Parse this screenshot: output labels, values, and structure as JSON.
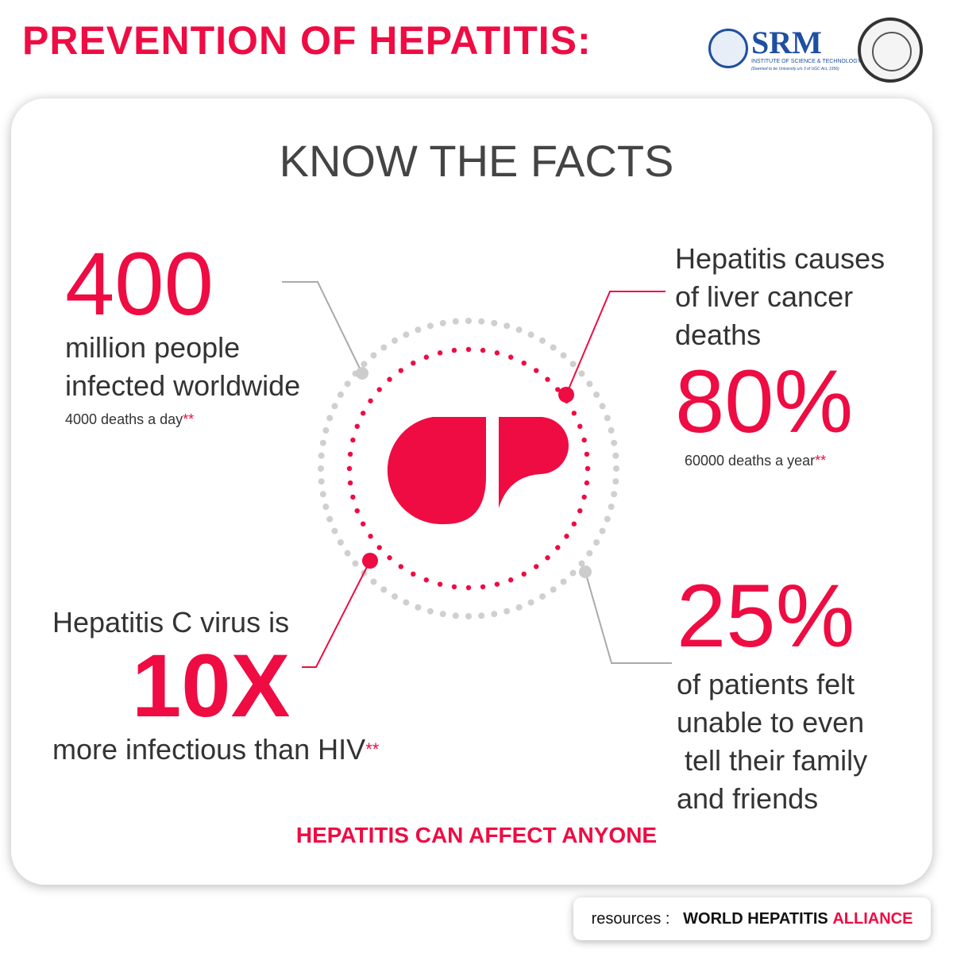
{
  "header": {
    "title": "PREVENTION OF HEPATITIS:",
    "logo_name": "SRM",
    "logo_subtitle": "INSTITUTE OF SCIENCE & TECHNOLOGY",
    "logo_note": "(Deemed to be University u/s 3 of UGC Act, 1956)"
  },
  "card": {
    "title": "KNOW THE FACTS",
    "facts": [
      {
        "figure": "400",
        "lines": [
          "million people",
          "infected worldwide"
        ],
        "note": "4000 deaths a day",
        "marker": "**"
      },
      {
        "lines": [
          "Hepatitis causes",
          "of liver cancer",
          "deaths"
        ],
        "figure": "80%",
        "note": "60000 deaths a year",
        "marker": "**"
      },
      {
        "lines": [
          "Hepatitis C virus is"
        ],
        "figure": "10X",
        "after": "more infectious than HIV",
        "marker": "**"
      },
      {
        "figure": "25%",
        "lines": [
          "of patients felt",
          "unable to even",
          " tell their family",
          "and friends"
        ]
      }
    ],
    "tagline": "HEPATITIS CAN AFFECT ANYONE"
  },
  "footer": {
    "label": "resources :",
    "source": "WORLD HEPATITIS",
    "source_highlight": "ALLIANCE"
  }
}
